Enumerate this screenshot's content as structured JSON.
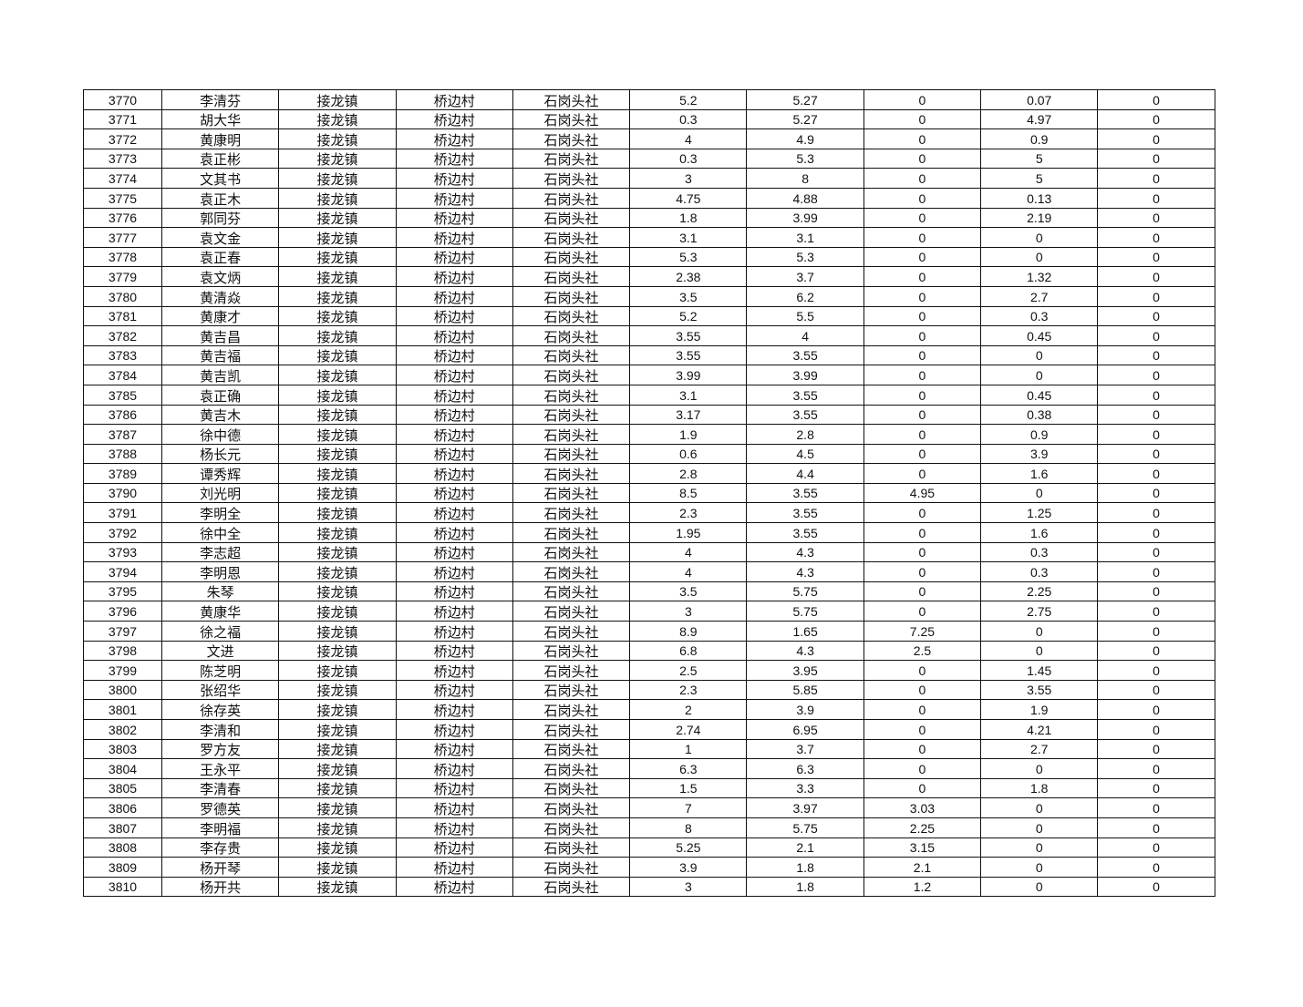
{
  "table": {
    "rows": [
      [
        "3770",
        "李清芬",
        "接龙镇",
        "桥边村",
        "石岗头社",
        "5.2",
        "5.27",
        "0",
        "0.07",
        "0"
      ],
      [
        "3771",
        "胡大华",
        "接龙镇",
        "桥边村",
        "石岗头社",
        "0.3",
        "5.27",
        "0",
        "4.97",
        "0"
      ],
      [
        "3772",
        "黄康明",
        "接龙镇",
        "桥边村",
        "石岗头社",
        "4",
        "4.9",
        "0",
        "0.9",
        "0"
      ],
      [
        "3773",
        "袁正彬",
        "接龙镇",
        "桥边村",
        "石岗头社",
        "0.3",
        "5.3",
        "0",
        "5",
        "0"
      ],
      [
        "3774",
        "文其书",
        "接龙镇",
        "桥边村",
        "石岗头社",
        "3",
        "8",
        "0",
        "5",
        "0"
      ],
      [
        "3775",
        "袁正木",
        "接龙镇",
        "桥边村",
        "石岗头社",
        "4.75",
        "4.88",
        "0",
        "0.13",
        "0"
      ],
      [
        "3776",
        "郭同芬",
        "接龙镇",
        "桥边村",
        "石岗头社",
        "1.8",
        "3.99",
        "0",
        "2.19",
        "0"
      ],
      [
        "3777",
        "袁文金",
        "接龙镇",
        "桥边村",
        "石岗头社",
        "3.1",
        "3.1",
        "0",
        "0",
        "0"
      ],
      [
        "3778",
        "袁正春",
        "接龙镇",
        "桥边村",
        "石岗头社",
        "5.3",
        "5.3",
        "0",
        "0",
        "0"
      ],
      [
        "3779",
        "袁文炳",
        "接龙镇",
        "桥边村",
        "石岗头社",
        "2.38",
        "3.7",
        "0",
        "1.32",
        "0"
      ],
      [
        "3780",
        "黄清焱",
        "接龙镇",
        "桥边村",
        "石岗头社",
        "3.5",
        "6.2",
        "0",
        "2.7",
        "0"
      ],
      [
        "3781",
        "黄康才",
        "接龙镇",
        "桥边村",
        "石岗头社",
        "5.2",
        "5.5",
        "0",
        "0.3",
        "0"
      ],
      [
        "3782",
        "黄吉昌",
        "接龙镇",
        "桥边村",
        "石岗头社",
        "3.55",
        "4",
        "0",
        "0.45",
        "0"
      ],
      [
        "3783",
        "黄吉福",
        "接龙镇",
        "桥边村",
        "石岗头社",
        "3.55",
        "3.55",
        "0",
        "0",
        "0"
      ],
      [
        "3784",
        "黄吉凯",
        "接龙镇",
        "桥边村",
        "石岗头社",
        "3.99",
        "3.99",
        "0",
        "0",
        "0"
      ],
      [
        "3785",
        "袁正确",
        "接龙镇",
        "桥边村",
        "石岗头社",
        "3.1",
        "3.55",
        "0",
        "0.45",
        "0"
      ],
      [
        "3786",
        "黄吉木",
        "接龙镇",
        "桥边村",
        "石岗头社",
        "3.17",
        "3.55",
        "0",
        "0.38",
        "0"
      ],
      [
        "3787",
        "徐中德",
        "接龙镇",
        "桥边村",
        "石岗头社",
        "1.9",
        "2.8",
        "0",
        "0.9",
        "0"
      ],
      [
        "3788",
        "杨长元",
        "接龙镇",
        "桥边村",
        "石岗头社",
        "0.6",
        "4.5",
        "0",
        "3.9",
        "0"
      ],
      [
        "3789",
        "谭秀辉",
        "接龙镇",
        "桥边村",
        "石岗头社",
        "2.8",
        "4.4",
        "0",
        "1.6",
        "0"
      ],
      [
        "3790",
        "刘光明",
        "接龙镇",
        "桥边村",
        "石岗头社",
        "8.5",
        "3.55",
        "4.95",
        "0",
        "0"
      ],
      [
        "3791",
        "李明全",
        "接龙镇",
        "桥边村",
        "石岗头社",
        "2.3",
        "3.55",
        "0",
        "1.25",
        "0"
      ],
      [
        "3792",
        "徐中全",
        "接龙镇",
        "桥边村",
        "石岗头社",
        "1.95",
        "3.55",
        "0",
        "1.6",
        "0"
      ],
      [
        "3793",
        "李志超",
        "接龙镇",
        "桥边村",
        "石岗头社",
        "4",
        "4.3",
        "0",
        "0.3",
        "0"
      ],
      [
        "3794",
        "李明恩",
        "接龙镇",
        "桥边村",
        "石岗头社",
        "4",
        "4.3",
        "0",
        "0.3",
        "0"
      ],
      [
        "3795",
        "朱琴",
        "接龙镇",
        "桥边村",
        "石岗头社",
        "3.5",
        "5.75",
        "0",
        "2.25",
        "0"
      ],
      [
        "3796",
        "黄康华",
        "接龙镇",
        "桥边村",
        "石岗头社",
        "3",
        "5.75",
        "0",
        "2.75",
        "0"
      ],
      [
        "3797",
        "徐之福",
        "接龙镇",
        "桥边村",
        "石岗头社",
        "8.9",
        "1.65",
        "7.25",
        "0",
        "0"
      ],
      [
        "3798",
        "文进",
        "接龙镇",
        "桥边村",
        "石岗头社",
        "6.8",
        "4.3",
        "2.5",
        "0",
        "0"
      ],
      [
        "3799",
        "陈芝明",
        "接龙镇",
        "桥边村",
        "石岗头社",
        "2.5",
        "3.95",
        "0",
        "1.45",
        "0"
      ],
      [
        "3800",
        "张绍华",
        "接龙镇",
        "桥边村",
        "石岗头社",
        "2.3",
        "5.85",
        "0",
        "3.55",
        "0"
      ],
      [
        "3801",
        "徐存英",
        "接龙镇",
        "桥边村",
        "石岗头社",
        "2",
        "3.9",
        "0",
        "1.9",
        "0"
      ],
      [
        "3802",
        "李清和",
        "接龙镇",
        "桥边村",
        "石岗头社",
        "2.74",
        "6.95",
        "0",
        "4.21",
        "0"
      ],
      [
        "3803",
        "罗方友",
        "接龙镇",
        "桥边村",
        "石岗头社",
        "1",
        "3.7",
        "0",
        "2.7",
        "0"
      ],
      [
        "3804",
        "王永平",
        "接龙镇",
        "桥边村",
        "石岗头社",
        "6.3",
        "6.3",
        "0",
        "0",
        "0"
      ],
      [
        "3805",
        "李清春",
        "接龙镇",
        "桥边村",
        "石岗头社",
        "1.5",
        "3.3",
        "0",
        "1.8",
        "0"
      ],
      [
        "3806",
        "罗德英",
        "接龙镇",
        "桥边村",
        "石岗头社",
        "7",
        "3.97",
        "3.03",
        "0",
        "0"
      ],
      [
        "3807",
        "李明福",
        "接龙镇",
        "桥边村",
        "石岗头社",
        "8",
        "5.75",
        "2.25",
        "0",
        "0"
      ],
      [
        "3808",
        "李存贵",
        "接龙镇",
        "桥边村",
        "石岗头社",
        "5.25",
        "2.1",
        "3.15",
        "0",
        "0"
      ],
      [
        "3809",
        "杨开琴",
        "接龙镇",
        "桥边村",
        "石岗头社",
        "3.9",
        "1.8",
        "2.1",
        "0",
        "0"
      ],
      [
        "3810",
        "杨开共",
        "接龙镇",
        "桥边村",
        "石岗头社",
        "3",
        "1.8",
        "1.2",
        "0",
        "0"
      ]
    ]
  }
}
